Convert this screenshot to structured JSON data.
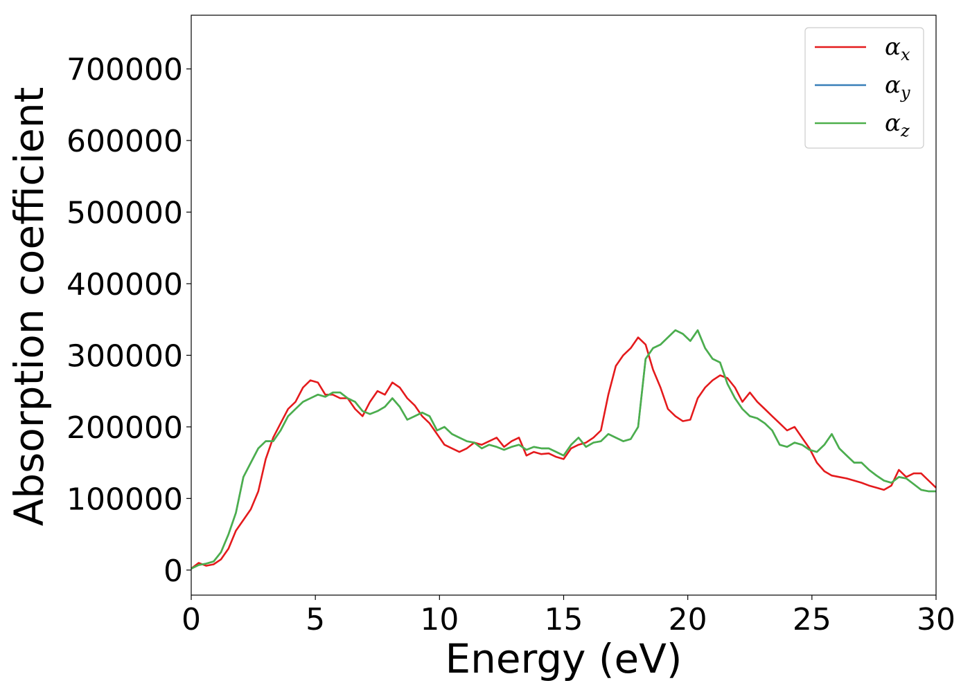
{
  "chart_data": {
    "type": "line",
    "title": "",
    "xlabel": "Energy (eV)",
    "ylabel": "Absorption coefficient",
    "xlim": [
      0,
      30
    ],
    "ylim": [
      -35000,
      775000
    ],
    "xticks": [
      0,
      5,
      10,
      15,
      20,
      25,
      30
    ],
    "xtick_labels": [
      "0",
      "5",
      "10",
      "15",
      "20",
      "25",
      "30"
    ],
    "yticks": [
      0,
      100000,
      200000,
      300000,
      400000,
      500000,
      600000,
      700000
    ],
    "ytick_labels": [
      "0",
      "100000",
      "200000",
      "300000",
      "400000",
      "500000",
      "600000",
      "700000"
    ],
    "grid": false,
    "legend_position": "top-right",
    "series": [
      {
        "name": "αx",
        "symbol": "α",
        "subscript": "x",
        "color": "#e41a1c",
        "x": [
          0,
          0.3,
          0.6,
          0.9,
          1.2,
          1.5,
          1.8,
          2.1,
          2.4,
          2.7,
          3.0,
          3.3,
          3.6,
          3.9,
          4.2,
          4.5,
          4.8,
          5.1,
          5.4,
          5.7,
          6.0,
          6.3,
          6.6,
          6.9,
          7.2,
          7.5,
          7.8,
          8.1,
          8.4,
          8.7,
          9.0,
          9.3,
          9.6,
          9.9,
          10.2,
          10.5,
          10.8,
          11.1,
          11.4,
          11.7,
          12.0,
          12.3,
          12.6,
          12.9,
          13.2,
          13.5,
          13.8,
          14.1,
          14.4,
          14.7,
          15.0,
          15.3,
          15.6,
          15.9,
          16.2,
          16.5,
          16.8,
          17.1,
          17.4,
          17.7,
          18.0,
          18.3,
          18.6,
          18.9,
          19.2,
          19.5,
          19.8,
          20.1,
          20.4,
          20.7,
          21.0,
          21.3,
          21.6,
          21.9,
          22.2,
          22.5,
          22.8,
          23.1,
          23.4,
          23.7,
          24.0,
          24.3,
          24.6,
          24.9,
          25.2,
          25.5,
          25.8,
          26.1,
          26.4,
          26.7,
          27.0,
          27.3,
          27.6,
          27.9,
          28.2,
          28.5,
          28.8,
          29.1,
          29.4,
          29.7,
          30.0
        ],
        "y": [
          2000,
          10000,
          6000,
          8000,
          15000,
          30000,
          55000,
          70000,
          85000,
          110000,
          155000,
          185000,
          205000,
          225000,
          235000,
          255000,
          265000,
          262000,
          245000,
          245000,
          240000,
          240000,
          225000,
          215000,
          235000,
          250000,
          245000,
          262000,
          255000,
          240000,
          230000,
          215000,
          205000,
          190000,
          175000,
          170000,
          165000,
          170000,
          178000,
          175000,
          180000,
          185000,
          172000,
          180000,
          185000,
          160000,
          165000,
          162000,
          163000,
          158000,
          155000,
          170000,
          175000,
          178000,
          185000,
          195000,
          245000,
          285000,
          300000,
          310000,
          325000,
          315000,
          280000,
          255000,
          225000,
          215000,
          208000,
          210000,
          240000,
          255000,
          265000,
          272000,
          268000,
          255000,
          235000,
          248000,
          235000,
          225000,
          215000,
          205000,
          195000,
          200000,
          185000,
          170000,
          150000,
          138000,
          132000,
          130000,
          128000,
          125000,
          122000,
          118000,
          115000,
          112000,
          118000,
          140000,
          130000,
          135000,
          135000,
          125000,
          115000
        ]
      },
      {
        "name": "αy",
        "symbol": "α",
        "subscript": "y",
        "color": "#377eb8",
        "x": [
          0,
          0.3,
          0.6,
          0.9,
          1.2,
          1.5,
          1.8,
          2.1,
          2.4,
          2.7,
          3.0,
          3.3,
          3.6,
          3.9,
          4.2,
          4.5,
          4.8,
          5.1,
          5.4,
          5.7,
          6.0,
          6.3,
          6.6,
          6.9,
          7.2,
          7.5,
          7.8,
          8.1,
          8.4,
          8.7,
          9.0,
          9.3,
          9.6,
          9.9,
          10.2,
          10.5,
          10.8,
          11.1,
          11.4,
          11.7,
          12.0,
          12.3,
          12.6,
          12.9,
          13.2,
          13.5,
          13.8,
          14.1,
          14.4,
          14.7,
          15.0,
          15.3,
          15.6,
          15.9,
          16.2,
          16.5,
          16.8,
          17.1,
          17.4,
          17.7,
          18.0,
          18.3,
          18.6,
          18.9,
          19.2,
          19.5,
          19.8,
          20.1,
          20.4,
          20.7,
          21.0,
          21.3,
          21.6,
          21.9,
          22.2,
          22.5,
          22.8,
          23.1,
          23.4,
          23.7,
          24.0,
          24.3,
          24.6,
          24.9,
          25.2,
          25.5,
          25.8,
          26.1,
          26.4,
          26.7,
          27.0,
          27.3,
          27.6,
          27.9,
          28.2,
          28.5,
          28.8,
          29.1,
          29.4,
          29.7,
          30.0
        ],
        "y": [
          2000,
          7000,
          9000,
          12000,
          25000,
          50000,
          80000,
          130000,
          150000,
          170000,
          180000,
          180000,
          195000,
          215000,
          225000,
          235000,
          240000,
          245000,
          242000,
          248000,
          248000,
          240000,
          235000,
          222000,
          218000,
          222000,
          228000,
          240000,
          228000,
          210000,
          215000,
          220000,
          215000,
          195000,
          200000,
          190000,
          185000,
          180000,
          178000,
          170000,
          175000,
          172000,
          168000,
          172000,
          175000,
          168000,
          172000,
          170000,
          170000,
          165000,
          160000,
          175000,
          185000,
          172000,
          178000,
          180000,
          190000,
          185000,
          180000,
          183000,
          200000,
          295000,
          310000,
          315000,
          325000,
          335000,
          330000,
          320000,
          335000,
          310000,
          295000,
          290000,
          260000,
          240000,
          225000,
          215000,
          212000,
          205000,
          195000,
          175000,
          172000,
          178000,
          175000,
          168000,
          165000,
          175000,
          190000,
          170000,
          160000,
          150000,
          150000,
          140000,
          132000,
          125000,
          122000,
          130000,
          128000,
          120000,
          112000,
          110000,
          110000
        ]
      },
      {
        "name": "αz",
        "symbol": "α",
        "subscript": "z",
        "color": "#4daf4a",
        "x": [
          0,
          0.3,
          0.6,
          0.9,
          1.2,
          1.5,
          1.8,
          2.1,
          2.4,
          2.7,
          3.0,
          3.3,
          3.6,
          3.9,
          4.2,
          4.5,
          4.8,
          5.1,
          5.4,
          5.7,
          6.0,
          6.3,
          6.6,
          6.9,
          7.2,
          7.5,
          7.8,
          8.1,
          8.4,
          8.7,
          9.0,
          9.3,
          9.6,
          9.9,
          10.2,
          10.5,
          10.8,
          11.1,
          11.4,
          11.7,
          12.0,
          12.3,
          12.6,
          12.9,
          13.2,
          13.5,
          13.8,
          14.1,
          14.4,
          14.7,
          15.0,
          15.3,
          15.6,
          15.9,
          16.2,
          16.5,
          16.8,
          17.1,
          17.4,
          17.7,
          18.0,
          18.3,
          18.6,
          18.9,
          19.2,
          19.5,
          19.8,
          20.1,
          20.4,
          20.7,
          21.0,
          21.3,
          21.6,
          21.9,
          22.2,
          22.5,
          22.8,
          23.1,
          23.4,
          23.7,
          24.0,
          24.3,
          24.6,
          24.9,
          25.2,
          25.5,
          25.8,
          26.1,
          26.4,
          26.7,
          27.0,
          27.3,
          27.6,
          27.9,
          28.2,
          28.5,
          28.8,
          29.1,
          29.4,
          29.7,
          30.0
        ],
        "y": [
          2000,
          7000,
          9000,
          12000,
          25000,
          50000,
          80000,
          130000,
          150000,
          170000,
          180000,
          180000,
          195000,
          215000,
          225000,
          235000,
          240000,
          245000,
          242000,
          248000,
          248000,
          240000,
          235000,
          222000,
          218000,
          222000,
          228000,
          240000,
          228000,
          210000,
          215000,
          220000,
          215000,
          195000,
          200000,
          190000,
          185000,
          180000,
          178000,
          170000,
          175000,
          172000,
          168000,
          172000,
          175000,
          168000,
          172000,
          170000,
          170000,
          165000,
          160000,
          175000,
          185000,
          172000,
          178000,
          180000,
          190000,
          185000,
          180000,
          183000,
          200000,
          295000,
          310000,
          315000,
          325000,
          335000,
          330000,
          320000,
          335000,
          310000,
          295000,
          290000,
          260000,
          240000,
          225000,
          215000,
          212000,
          205000,
          195000,
          175000,
          172000,
          178000,
          175000,
          168000,
          165000,
          175000,
          190000,
          170000,
          160000,
          150000,
          150000,
          140000,
          132000,
          125000,
          122000,
          130000,
          128000,
          120000,
          112000,
          110000,
          110000
        ]
      }
    ]
  }
}
